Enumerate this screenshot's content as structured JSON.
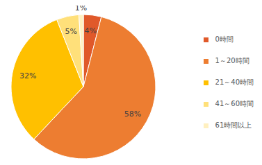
{
  "chart_data": {
    "type": "pie",
    "categories": [
      "0時間",
      "1～20時間",
      "21～40時間",
      "41～60時間",
      "61時間以上"
    ],
    "values": [
      4,
      58,
      32,
      5,
      1
    ],
    "value_labels": [
      "4%",
      "58%",
      "32%",
      "5%",
      "1%"
    ],
    "colors": [
      "#e0592a",
      "#ed7d31",
      "#ffc000",
      "#ffe07a",
      "#fff0c0"
    ],
    "data_labels": true,
    "legend": "right"
  }
}
